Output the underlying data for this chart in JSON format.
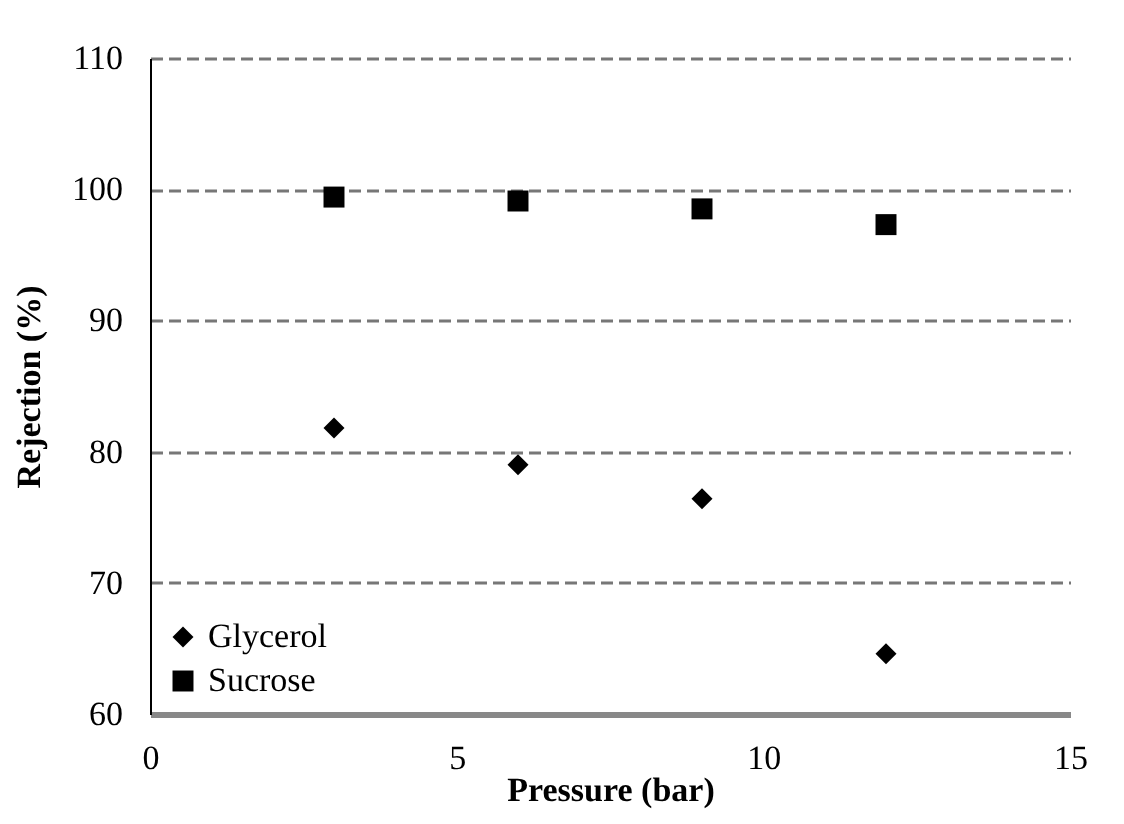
{
  "chart_data": {
    "type": "scatter",
    "xlabel": "Pressure (bar)",
    "ylabel": "Rejection (%)",
    "x": [
      3,
      6,
      9,
      12
    ],
    "series": [
      {
        "name": "Glycerol",
        "color": "#000000",
        "marker": "diamond",
        "values": [
          81.8,
          79.0,
          76.4,
          64.6
        ]
      },
      {
        "name": "Sucrose",
        "color": "#000000",
        "marker": "square",
        "values": [
          99.4,
          99.1,
          98.5,
          97.3
        ]
      }
    ],
    "xlim": [
      0,
      15
    ],
    "xticks": [
      0,
      5,
      10,
      15
    ],
    "ylim": [
      60,
      110
    ],
    "yticks": [
      60,
      70,
      80,
      90,
      100,
      110
    ],
    "grid": "y",
    "legend": "bottom left"
  }
}
